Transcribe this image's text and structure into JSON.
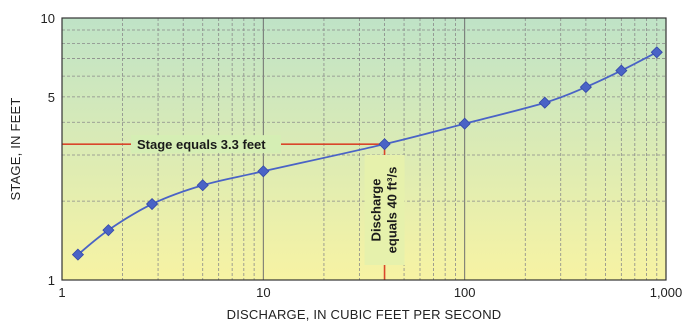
{
  "chart_data": {
    "type": "line",
    "xlabel": "DISCHARGE, IN CUBIC FEET PER SECOND",
    "ylabel": "STAGE, IN FEET",
    "xscale": "log",
    "yscale": "log",
    "xlim": [
      1,
      1000
    ],
    "ylim": [
      1,
      10
    ],
    "x_ticks": [
      1,
      10,
      100,
      1000
    ],
    "x_tick_labels": [
      "1",
      "10",
      "100",
      "1,000"
    ],
    "y_ticks": [
      1,
      5,
      10
    ],
    "y_tick_labels": [
      "1",
      "5",
      "10"
    ],
    "grid": true,
    "series": [
      {
        "x": [
          1.2,
          1.7,
          2.8,
          5,
          10,
          40,
          100,
          250,
          400,
          600,
          900
        ],
        "y": [
          1.25,
          1.55,
          1.95,
          2.3,
          2.6,
          3.3,
          3.95,
          4.75,
          5.45,
          6.3,
          7.4
        ],
        "color": "#4a63c6",
        "marker": "diamond"
      }
    ],
    "annotations": [
      {
        "text": "Stage equals 3.3 feet",
        "x": 40,
        "y": 3.3,
        "direction": "horizontal",
        "line_color": "#d9462b"
      },
      {
        "text_lines": [
          "Discharge",
          "equals 40 ft³/s"
        ],
        "x": 40,
        "y": 3.3,
        "direction": "vertical",
        "line_color": "#d9462b"
      }
    ],
    "background_gradient": [
      "#bfe3c7",
      "#f7f3a3"
    ]
  }
}
